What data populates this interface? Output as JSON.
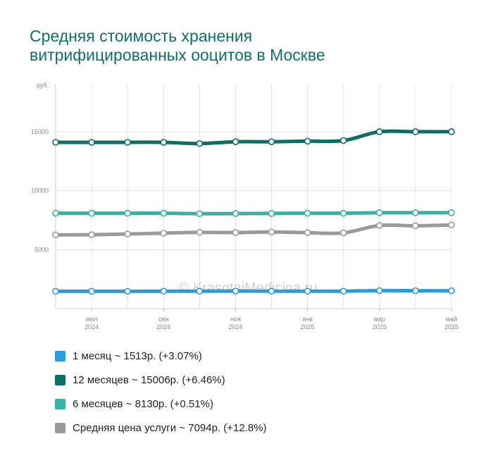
{
  "title": {
    "line1": "Средняя стоимость хранения",
    "line2": "витрифицированных ооцитов в Москве"
  },
  "watermark": "© KrasotaiMedicina.ru",
  "chart_data": {
    "type": "line",
    "yunit": "руб.",
    "ylim": [
      0,
      19000
    ],
    "yticks": [
      5000,
      10000,
      15000
    ],
    "x": [
      "2024-06",
      "2024-07",
      "2024-08",
      "2024-09",
      "2024-10",
      "2024-11",
      "2024-12",
      "2025-01",
      "2025-02",
      "2025-03",
      "2025-04",
      "2025-05"
    ],
    "xtick_labels": [
      {
        "x": "2024-07",
        "month": "июл",
        "year": "2024"
      },
      {
        "x": "2024-09",
        "month": "сен",
        "year": "2024"
      },
      {
        "x": "2024-11",
        "month": "ноя",
        "year": "2024"
      },
      {
        "x": "2025-01",
        "month": "янв",
        "year": "2025"
      },
      {
        "x": "2025-03",
        "month": "мар",
        "year": "2025"
      },
      {
        "x": "2025-05",
        "month": "май",
        "year": "2025"
      }
    ],
    "grid": true,
    "series": [
      {
        "name": "Средняя цена услуги",
        "color": "#9a9a9a",
        "values": [
          6250,
          6270,
          6330,
          6400,
          6470,
          6450,
          6500,
          6440,
          6420,
          7050,
          7020,
          7094
        ]
      },
      {
        "name": "1 месяц",
        "color": "#2b9be0",
        "values": [
          1470,
          1470,
          1470,
          1480,
          1480,
          1490,
          1480,
          1480,
          1480,
          1530,
          1520,
          1513
        ]
      },
      {
        "name": "6 месяцев",
        "color": "#3aafa2",
        "values": [
          8090,
          8090,
          8090,
          8090,
          8050,
          8060,
          8070,
          8090,
          8090,
          8130,
          8130,
          8130
        ]
      },
      {
        "name": "12 месяцев",
        "color": "#0c6e65",
        "values": [
          14100,
          14100,
          14100,
          14100,
          14000,
          14150,
          14150,
          14200,
          14250,
          15000,
          15000,
          15006
        ]
      }
    ]
  },
  "legend": [
    {
      "label": "1 месяц ~ 1513р. (+3.07%)",
      "color": "#2b9be0"
    },
    {
      "label": "12 месяцев ~ 15006р. (+6.46%)",
      "color": "#0c6e65"
    },
    {
      "label": "6 месяцев ~ 8130р. (+0.51%)",
      "color": "#3aafa2"
    },
    {
      "label": "Средняя цена услуги ~ 7094р. (+12.8%)",
      "color": "#9a9a9a"
    }
  ]
}
